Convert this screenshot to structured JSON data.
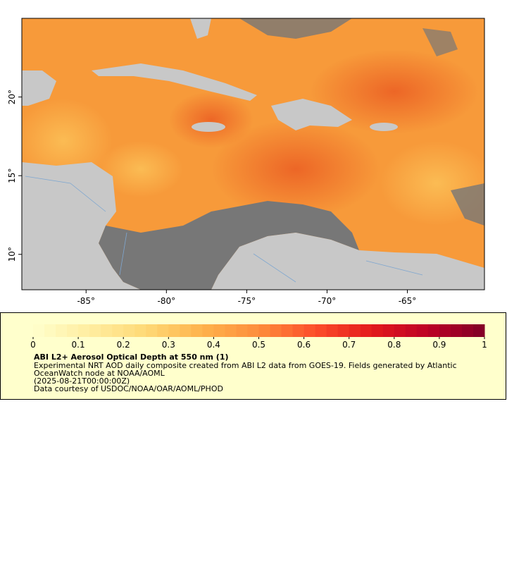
{
  "chart_data": {
    "type": "map",
    "xlim": [
      -89,
      -60.2
    ],
    "ylim": [
      7.75,
      25
    ],
    "xticks": [
      {
        "value": -85,
        "label": "-85°"
      },
      {
        "value": -80,
        "label": "-80°"
      },
      {
        "value": -75,
        "label": "-75°"
      },
      {
        "value": -70,
        "label": "-70°"
      },
      {
        "value": -65,
        "label": "-65°"
      }
    ],
    "yticks": [
      {
        "value": 10,
        "label": "10°"
      },
      {
        "value": 15,
        "label": "15°"
      },
      {
        "value": 20,
        "label": "20°"
      }
    ],
    "colorbar": {
      "lim": [
        0,
        1
      ],
      "ticks": [
        0,
        0.1,
        0.2,
        0.3,
        0.4,
        0.5,
        0.6,
        0.7,
        0.8,
        0.9,
        1
      ],
      "colors": [
        "#ffffcc",
        "#ffeda0",
        "#fed976",
        "#feb24c",
        "#fd8d3c",
        "#fc4e2a",
        "#e31a1c",
        "#bd0026",
        "#800026"
      ]
    },
    "title": "ABI L2+ Aerosol Optical Depth at 550 nm (1)",
    "description": [
      "Experimental NRT AOD daily composite created from ABI L2 data from GOES-19. Fields generated by Atlantic",
      "OceanWatch node at NOAA/AOML"
    ],
    "date": "(2025-08-21T00:00:00Z)",
    "credit": "Data courtesy of USDOC/NOAA/OAR/AOML/PHOD"
  }
}
